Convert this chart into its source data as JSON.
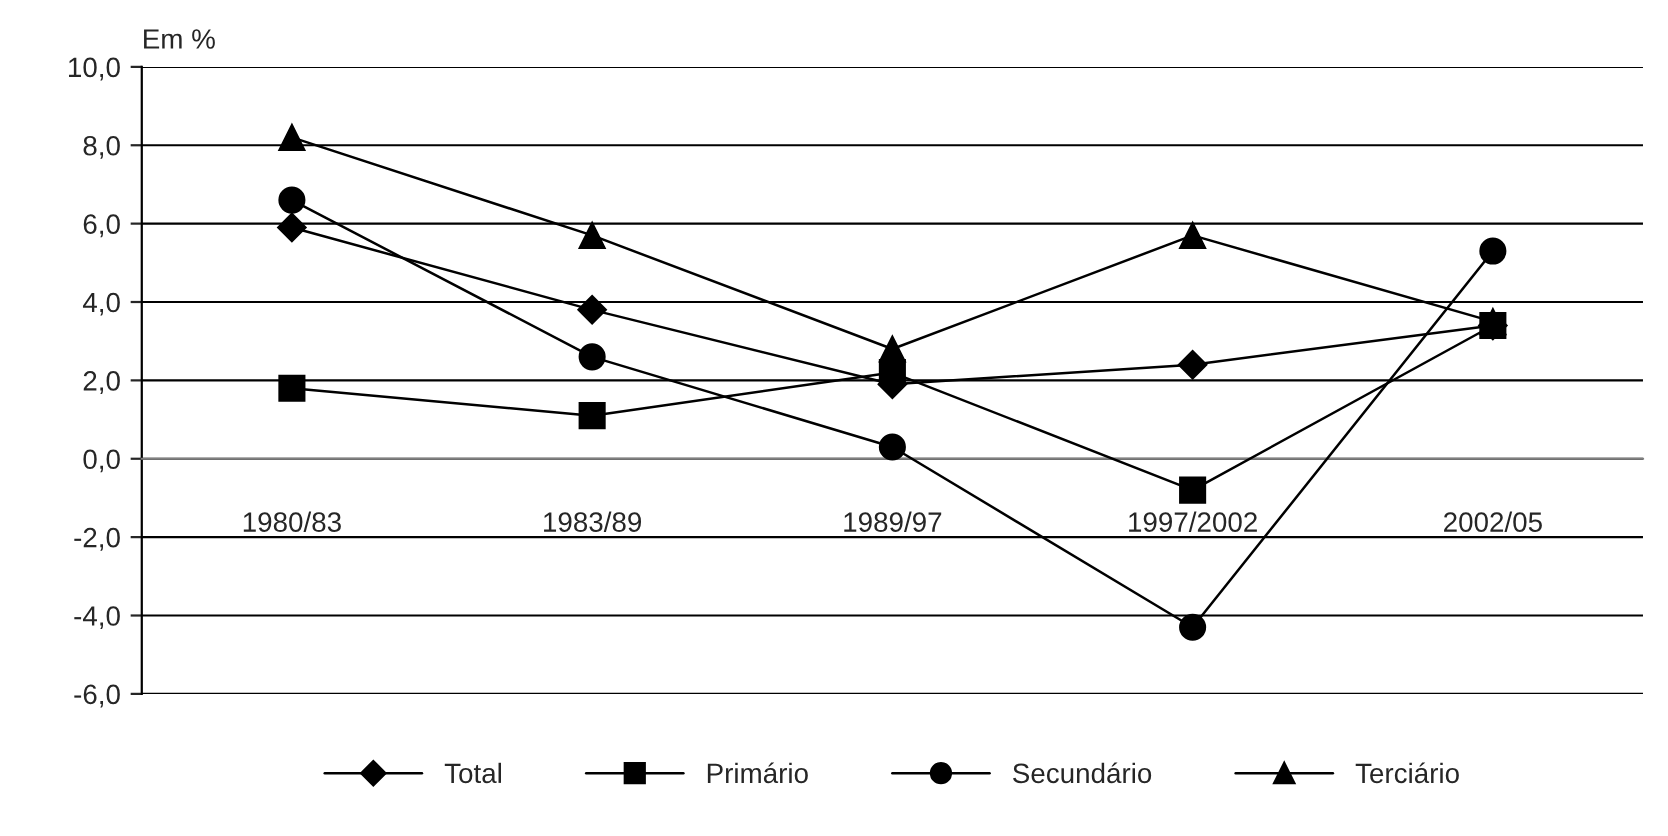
{
  "chart_data": {
    "type": "line",
    "ylabel": "Em %",
    "categories": [
      "1980/83",
      "1983/89",
      "1989/97",
      "1997/2002",
      "2002/05"
    ],
    "series": [
      {
        "name": "Total",
        "color": "#000000",
        "marker": "diamond",
        "values": [
          5.9,
          3.8,
          1.9,
          2.4,
          3.4
        ]
      },
      {
        "name": "Primário",
        "color": "#000000",
        "marker": "square",
        "values": [
          1.8,
          1.1,
          2.2,
          -0.8,
          3.4
        ]
      },
      {
        "name": "Secundário",
        "color": "#000000",
        "marker": "circle",
        "values": [
          6.6,
          2.6,
          0.3,
          -4.3,
          5.3
        ]
      },
      {
        "name": "Terciário",
        "color": "#000000",
        "marker": "triangle",
        "values": [
          8.2,
          5.7,
          2.8,
          5.7,
          3.5
        ]
      }
    ],
    "ylim": [
      -6,
      10
    ],
    "yticks": [
      {
        "value": -6,
        "label": "-6,0"
      },
      {
        "value": -4,
        "label": "-4,0"
      },
      {
        "value": -2,
        "label": "-2,0"
      },
      {
        "value": 0,
        "label": "0,0"
      },
      {
        "value": 2,
        "label": "2,0"
      },
      {
        "value": 4,
        "label": "4,0"
      },
      {
        "value": 6,
        "label": "6,0"
      },
      {
        "value": 8,
        "label": "8,0"
      },
      {
        "value": 10,
        "label": "10,0"
      }
    ],
    "grid": "y",
    "legend": "bottom",
    "line_style": "solid"
  }
}
